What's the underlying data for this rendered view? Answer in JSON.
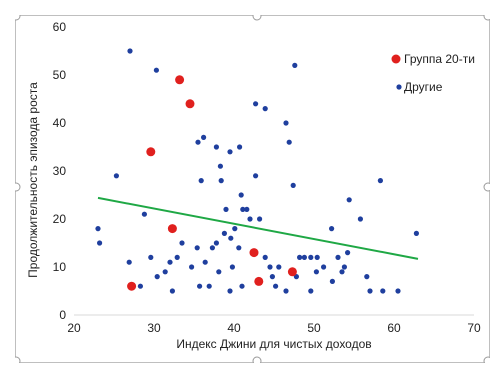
{
  "chart_data": {
    "type": "scatter",
    "title": "",
    "xlabel": "Индекс Джини для чистых доходов",
    "ylabel": "Продолжительность эпизода роста",
    "xlim": [
      20,
      70
    ],
    "ylim": [
      0,
      60
    ],
    "x_ticks": [
      "20",
      "30",
      "40",
      "50",
      "60",
      "70"
    ],
    "y_ticks": [
      "0",
      "10",
      "20",
      "30",
      "40",
      "50",
      "60"
    ],
    "grid": false,
    "legend_position": "top-right",
    "series": [
      {
        "name": "Группа 20-ти",
        "color": "#e0201e",
        "points": [
          [
            33.2,
            49
          ],
          [
            34.5,
            44
          ],
          [
            29.6,
            34
          ],
          [
            32.3,
            18
          ],
          [
            42.5,
            13
          ],
          [
            43.1,
            7
          ],
          [
            47.3,
            9
          ],
          [
            27.2,
            6
          ]
        ]
      },
      {
        "name": "Другие",
        "color": "#1f3f9e",
        "points": [
          [
            27.0,
            55
          ],
          [
            30.3,
            51
          ],
          [
            47.6,
            52
          ],
          [
            42.7,
            44
          ],
          [
            43.9,
            43
          ],
          [
            46.5,
            40
          ],
          [
            37.8,
            35
          ],
          [
            39.5,
            34
          ],
          [
            40.7,
            35
          ],
          [
            35.5,
            36
          ],
          [
            36.2,
            37
          ],
          [
            46.9,
            36
          ],
          [
            25.3,
            29
          ],
          [
            38.3,
            31
          ],
          [
            42.7,
            29
          ],
          [
            35.9,
            28
          ],
          [
            38.4,
            28
          ],
          [
            47.4,
            27
          ],
          [
            58.3,
            28
          ],
          [
            40.9,
            25
          ],
          [
            41.1,
            22
          ],
          [
            54.4,
            24
          ],
          [
            41.6,
            22
          ],
          [
            39.0,
            22
          ],
          [
            42.0,
            20
          ],
          [
            43.2,
            20
          ],
          [
            28.8,
            21
          ],
          [
            55.8,
            20
          ],
          [
            23.0,
            18
          ],
          [
            40.1,
            18
          ],
          [
            52.2,
            18
          ],
          [
            38.8,
            17
          ],
          [
            39.6,
            16
          ],
          [
            37.8,
            15
          ],
          [
            62.8,
            17
          ],
          [
            37.3,
            14
          ],
          [
            23.2,
            15
          ],
          [
            33.5,
            15
          ],
          [
            43.9,
            12
          ],
          [
            35.4,
            14
          ],
          [
            40.6,
            14
          ],
          [
            44.5,
            10
          ],
          [
            48.2,
            12
          ],
          [
            48.8,
            12
          ],
          [
            49.6,
            12
          ],
          [
            50.4,
            12
          ],
          [
            51.2,
            10
          ],
          [
            53.0,
            12
          ],
          [
            54.2,
            13
          ],
          [
            32.0,
            11
          ],
          [
            32.9,
            12
          ],
          [
            34.7,
            10
          ],
          [
            36.4,
            11
          ],
          [
            38.1,
            9
          ],
          [
            39.8,
            10
          ],
          [
            45.6,
            10
          ],
          [
            53.5,
            9
          ],
          [
            56.6,
            8
          ],
          [
            41.0,
            6
          ],
          [
            35.7,
            6
          ],
          [
            26.9,
            11
          ],
          [
            29.6,
            12
          ],
          [
            31.4,
            9
          ],
          [
            44.8,
            8
          ],
          [
            50.3,
            9
          ],
          [
            39.5,
            5
          ],
          [
            52.3,
            7
          ],
          [
            30.4,
            8
          ],
          [
            45.2,
            6
          ],
          [
            46.5,
            5
          ],
          [
            32.3,
            5
          ],
          [
            57.0,
            5
          ],
          [
            60.5,
            5
          ],
          [
            47.8,
            8
          ],
          [
            49.6,
            5
          ],
          [
            58.6,
            5
          ],
          [
            28.3,
            6
          ],
          [
            36.9,
            6
          ],
          [
            53.8,
            10
          ]
        ]
      }
    ],
    "trendline": {
      "color": "#1fa845",
      "from": [
        23,
        24.4
      ],
      "to": [
        63,
        11.7
      ]
    }
  }
}
